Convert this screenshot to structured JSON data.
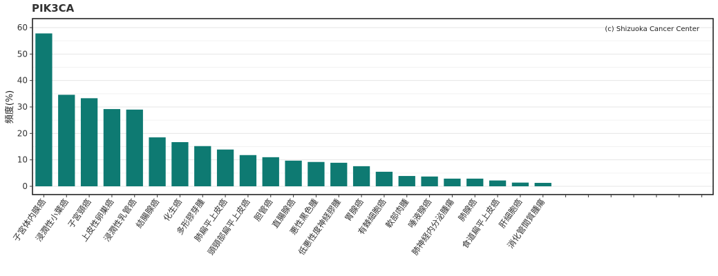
{
  "chart_data": {
    "type": "bar",
    "title": "PIK3CA",
    "ylabel": "頻度(%)",
    "xlabel": "",
    "ylim": [
      0,
      60
    ],
    "yticks": [
      0,
      10,
      20,
      30,
      40,
      50,
      60
    ],
    "grid": true,
    "annotation": "(c) Shizuoka Cancer Center",
    "bar_color": "#0e7a72",
    "categories": [
      "子宮体内膜癌",
      "浸潤性小葉癌",
      "子宮頸癌",
      "上皮性卵巣癌",
      "浸潤性乳管癌",
      "結腸腺癌",
      "化生癌",
      "多形膠芽腫",
      "肺扁平上皮癌",
      "頭頸部扁平上皮癌",
      "胆管癌",
      "直腸腺癌",
      "悪性黒色腫",
      "低悪性度神経膠腫",
      "胃腺癌",
      "有棘細胞癌",
      "軟部肉腫",
      "唾液腺癌",
      "肺神経内分泌腫瘍",
      "肺腺癌",
      "食道扁平上皮癌",
      "肝細胞癌",
      "消化管間質腫瘍",
      "",
      "",
      "",
      "",
      "",
      "",
      ""
    ],
    "values": [
      57.8,
      34.6,
      33.3,
      29.2,
      29.0,
      18.5,
      16.7,
      15.2,
      13.9,
      11.8,
      11.0,
      9.7,
      9.2,
      8.9,
      7.6,
      5.5,
      3.9,
      3.7,
      2.9,
      2.9,
      2.2,
      1.4,
      1.3,
      0,
      0,
      0,
      0,
      0,
      0,
      0
    ]
  }
}
